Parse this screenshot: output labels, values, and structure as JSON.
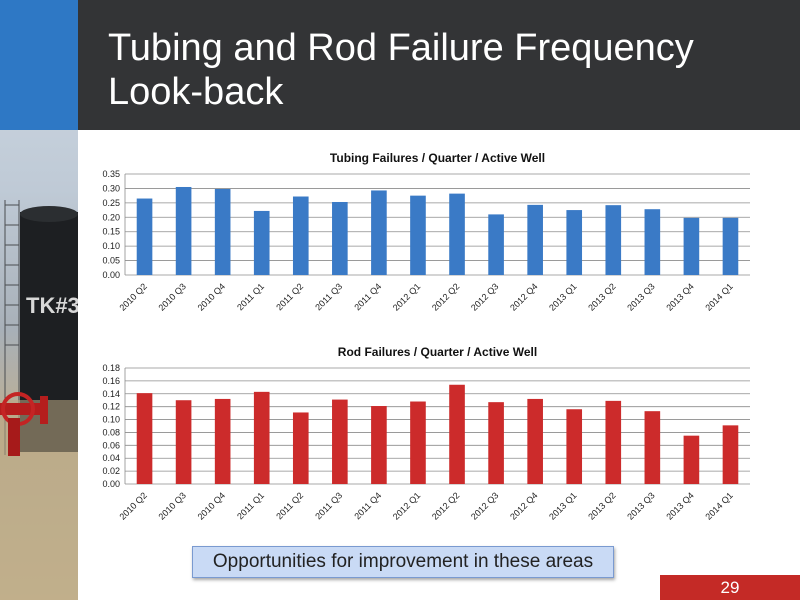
{
  "slide": {
    "title": "Tubing and Rod Failure Frequency Look-back",
    "callout": "Opportunities for improvement in these areas",
    "page_number": "29",
    "photo_text": "TK#3"
  },
  "colors": {
    "title_bar": "#333436",
    "accent_block": "#2e78c5",
    "tubing_bars": "#3a7ac6",
    "rod_bars": "#cc2b2b",
    "page_number_box": "#c42a26"
  },
  "chart_data": [
    {
      "type": "bar",
      "title": "Tubing Failures / Quarter / Active Well",
      "categories": [
        "2010 Q2",
        "2010 Q3",
        "2010 Q4",
        "2011 Q1",
        "2011 Q2",
        "2011 Q3",
        "2011 Q4",
        "2012 Q1",
        "2012 Q2",
        "2012 Q3",
        "2012 Q4",
        "2013 Q1",
        "2013 Q2",
        "2013 Q3",
        "2013 Q4",
        "2014 Q1"
      ],
      "values": [
        0.265,
        0.305,
        0.298,
        0.222,
        0.272,
        0.253,
        0.293,
        0.275,
        0.282,
        0.21,
        0.243,
        0.225,
        0.242,
        0.228,
        0.198,
        0.198
      ],
      "ylim": [
        0,
        0.35
      ],
      "yticks": [
        "0.00",
        "0.05",
        "0.10",
        "0.15",
        "0.20",
        "0.25",
        "0.30",
        "0.35"
      ],
      "grid": true,
      "color": "#3a7ac6"
    },
    {
      "type": "bar",
      "title": "Rod Failures / Quarter / Active Well",
      "categories": [
        "2010 Q2",
        "2010 Q3",
        "2010 Q4",
        "2011 Q1",
        "2011 Q2",
        "2011 Q3",
        "2011 Q4",
        "2012 Q1",
        "2012 Q2",
        "2012 Q3",
        "2012 Q4",
        "2013 Q1",
        "2013 Q2",
        "2013 Q3",
        "2013 Q4",
        "2014 Q1"
      ],
      "values": [
        0.141,
        0.13,
        0.132,
        0.143,
        0.111,
        0.131,
        0.121,
        0.128,
        0.154,
        0.127,
        0.132,
        0.116,
        0.129,
        0.113,
        0.075,
        0.091
      ],
      "ylim": [
        0,
        0.18
      ],
      "yticks": [
        "0.00",
        "0.02",
        "0.04",
        "0.06",
        "0.08",
        "0.10",
        "0.12",
        "0.14",
        "0.16",
        "0.18"
      ],
      "grid": true,
      "color": "#cc2b2b"
    }
  ]
}
